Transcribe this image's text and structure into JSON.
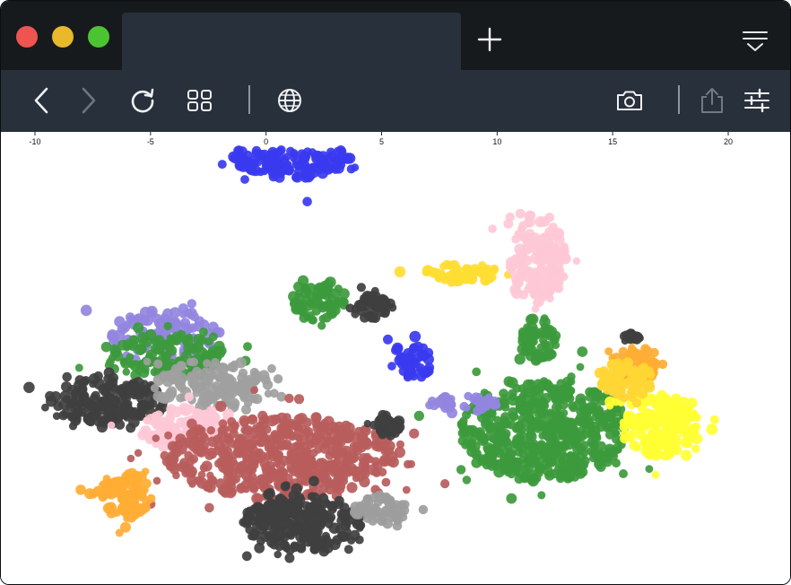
{
  "browser": {
    "tab_title": "",
    "icons": {
      "close": "close-icon",
      "minimize": "minimize-icon",
      "maximize": "maximize-icon",
      "new_tab": "plus-icon",
      "tab_menu": "tab-list-icon",
      "back": "chevron-left-icon",
      "forward": "chevron-right-icon",
      "reload": "reload-icon",
      "tabs_overview": "grid-icon",
      "site_info": "globe-icon",
      "screenshot": "camera-icon",
      "share": "share-icon",
      "settings": "sliders-icon"
    },
    "colors": {
      "titlebar": "#171a1d",
      "toolbar": "#27303b",
      "close": "#ee5550",
      "minimize": "#e9b82b",
      "maximize": "#4cc432"
    }
  },
  "chart_data": {
    "type": "scatter",
    "title": "",
    "xlabel": "",
    "ylabel": "",
    "xlim": [
      -11.5,
      22.5
    ],
    "x_ticks": [
      -10,
      -5,
      0,
      5,
      10,
      15,
      20
    ],
    "x_tick_labels": [
      "-10",
      "-5",
      "0",
      "5",
      "10",
      "15",
      "20"
    ],
    "grid": false,
    "legend": "none",
    "clusters": [
      {
        "color": "#3a3af0",
        "center": [
          1.1,
          8.6
        ],
        "spread": [
          2.6,
          1.1
        ],
        "points": 260
      },
      {
        "color": "#9386df",
        "center": [
          -4.4,
          0.8
        ],
        "spread": [
          2.4,
          1.0
        ],
        "points": 110
      },
      {
        "color": "#3c9a3c",
        "center": [
          -4.3,
          -0.2
        ],
        "spread": [
          2.6,
          1.0
        ],
        "points": 140
      },
      {
        "color": "#3f3f3f",
        "center": [
          -6.8,
          -2.2
        ],
        "spread": [
          2.4,
          1.1
        ],
        "points": 180
      },
      {
        "color": "#a0a0a0",
        "center": [
          -2.4,
          -1.4
        ],
        "spread": [
          2.6,
          1.1
        ],
        "points": 140
      },
      {
        "color": "#ffc8d6",
        "center": [
          -3.4,
          -3.4
        ],
        "spread": [
          2.0,
          1.0
        ],
        "points": 130
      },
      {
        "color": "#b85c5c",
        "center": [
          0.6,
          -4.6
        ],
        "spread": [
          5.0,
          1.8
        ],
        "points": 560
      },
      {
        "color": "#3f3f3f",
        "center": [
          1.6,
          -7.4
        ],
        "spread": [
          2.6,
          1.2
        ],
        "points": 260
      },
      {
        "color": "#9d9d9d",
        "center": [
          5.0,
          -6.8
        ],
        "spread": [
          1.2,
          0.6
        ],
        "points": 60
      },
      {
        "color": "#3f3f3f",
        "center": [
          5.2,
          -3.2
        ],
        "spread": [
          0.6,
          0.5
        ],
        "points": 40
      },
      {
        "color": "#ffad33",
        "center": [
          -6.2,
          -6.2
        ],
        "spread": [
          1.3,
          1.0
        ],
        "points": 90
      },
      {
        "color": "#3c9a3c",
        "center": [
          2.3,
          2.2
        ],
        "spread": [
          1.2,
          0.9
        ],
        "points": 70
      },
      {
        "color": "#3f3f3f",
        "center": [
          4.5,
          2.0
        ],
        "spread": [
          0.9,
          0.6
        ],
        "points": 50
      },
      {
        "color": "#3a3af0",
        "center": [
          6.3,
          -0.4
        ],
        "spread": [
          0.9,
          0.8
        ],
        "points": 50
      },
      {
        "color": "#ffdd33",
        "center": [
          8.5,
          3.4
        ],
        "spread": [
          1.6,
          0.4
        ],
        "points": 60
      },
      {
        "color": "#ffc8d6",
        "center": [
          11.8,
          4.0
        ],
        "spread": [
          1.2,
          2.0
        ],
        "points": 160
      },
      {
        "color": "#3c9a3c",
        "center": [
          12.0,
          -3.4
        ],
        "spread": [
          3.6,
          2.2
        ],
        "points": 560
      },
      {
        "color": "#3c9a3c",
        "center": [
          11.8,
          0.5
        ],
        "spread": [
          0.8,
          1.0
        ],
        "points": 60
      },
      {
        "color": "#ffff33",
        "center": [
          17.0,
          -3.2
        ],
        "spread": [
          1.6,
          1.4
        ],
        "points": 200
      },
      {
        "color": "#ffad33",
        "center": [
          16.0,
          -0.6
        ],
        "spread": [
          1.0,
          0.8
        ],
        "points": 80
      },
      {
        "color": "#ffd633",
        "center": [
          15.5,
          -1.2
        ],
        "spread": [
          1.2,
          0.8
        ],
        "points": 80
      },
      {
        "color": "#9386df",
        "center": [
          8.6,
          -2.2
        ],
        "spread": [
          1.6,
          0.3
        ],
        "points": 40
      },
      {
        "color": "#3f3f3f",
        "center": [
          15.9,
          0.6
        ],
        "spread": [
          0.5,
          0.2
        ],
        "points": 14
      }
    ]
  }
}
